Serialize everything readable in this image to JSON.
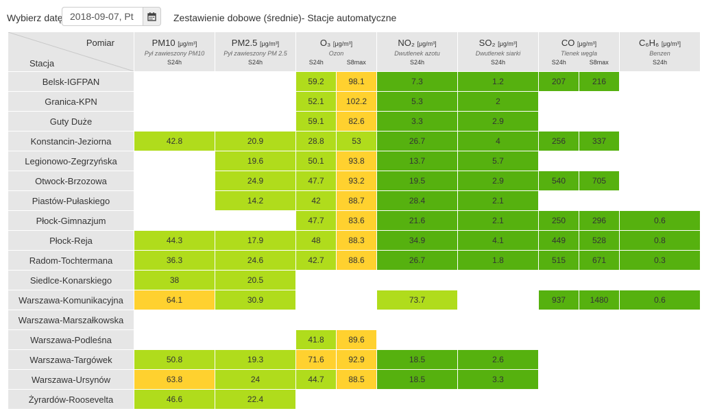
{
  "toolbar": {
    "date_label": "Wybierz datę:",
    "date_value": "2018-09-07, Pt",
    "title": "Zestawienie dobowe (średnie)- Stacje automatyczne"
  },
  "header": {
    "pomiar": "Pomiar",
    "stacja": "Stacja",
    "pm10": {
      "name": "PM10",
      "unit": "[μg/m³]",
      "desc": "Pył zawieszony PM10",
      "sub": [
        "S24h"
      ]
    },
    "pm25": {
      "name": "PM2.5",
      "unit": "[μg/m³]",
      "desc": "Pył zawieszony PM 2.5",
      "sub": [
        "S24h"
      ]
    },
    "o3": {
      "name": "O₃",
      "unit": "[μg/m³]",
      "desc": "Ozon",
      "sub": [
        "S24h",
        "S8max"
      ]
    },
    "no2": {
      "name": "NO₂",
      "unit": "[μg/m³]",
      "desc": "Dwutlenek azotu",
      "sub": [
        "S24h"
      ]
    },
    "so2": {
      "name": "SO₂",
      "unit": "[μg/m³]",
      "desc": "Dwutlenek siarki",
      "sub": [
        "S24h"
      ]
    },
    "co": {
      "name": "CO",
      "unit": "[μg/m³]",
      "desc": "Tlenek węgla",
      "sub": [
        "S24h",
        "S8max"
      ]
    },
    "c6h6": {
      "name": "C₆H₆",
      "unit": "[μg/m³]",
      "desc": "Benzen",
      "sub": [
        "S24h"
      ]
    }
  },
  "colors": {
    "y": "#ffd12f",
    "l": "#b0dc1c",
    "g": "#56b10f",
    "e": "#ffffff",
    "header_bg": "#e6e6e6"
  },
  "rows": [
    {
      "station": "Belsk-IGFPAN",
      "cells": [
        [
          "",
          ""
        ],
        [
          "",
          ""
        ],
        [
          "59.2",
          "l"
        ],
        [
          "98.1",
          "y"
        ],
        [
          "7.3",
          "g"
        ],
        [
          "1.2",
          "g"
        ],
        [
          "207",
          "g"
        ],
        [
          "216",
          "g"
        ],
        [
          "",
          ""
        ]
      ]
    },
    {
      "station": "Granica-KPN",
      "cells": [
        [
          "",
          ""
        ],
        [
          "",
          ""
        ],
        [
          "52.1",
          "l"
        ],
        [
          "102.2",
          "y"
        ],
        [
          "5.3",
          "g"
        ],
        [
          "2",
          "g"
        ],
        [
          "",
          ""
        ],
        [
          "",
          ""
        ],
        [
          "",
          ""
        ]
      ]
    },
    {
      "station": "Guty Duże",
      "cells": [
        [
          "",
          ""
        ],
        [
          "",
          ""
        ],
        [
          "59.1",
          "l"
        ],
        [
          "82.6",
          "y"
        ],
        [
          "3.3",
          "g"
        ],
        [
          "2.9",
          "g"
        ],
        [
          "",
          ""
        ],
        [
          "",
          ""
        ],
        [
          "",
          ""
        ]
      ]
    },
    {
      "station": "Konstancin-Jeziorna",
      "cells": [
        [
          "42.8",
          "l"
        ],
        [
          "20.9",
          "l"
        ],
        [
          "28.8",
          "l"
        ],
        [
          "53",
          "l"
        ],
        [
          "26.7",
          "g"
        ],
        [
          "4",
          "g"
        ],
        [
          "256",
          "g"
        ],
        [
          "337",
          "g"
        ],
        [
          "",
          ""
        ]
      ]
    },
    {
      "station": "Legionowo-Zegrzyńska",
      "cells": [
        [
          "",
          ""
        ],
        [
          "19.6",
          "l"
        ],
        [
          "50.1",
          "l"
        ],
        [
          "93.8",
          "y"
        ],
        [
          "13.7",
          "g"
        ],
        [
          "5.7",
          "g"
        ],
        [
          "",
          ""
        ],
        [
          "",
          ""
        ],
        [
          "",
          ""
        ]
      ]
    },
    {
      "station": "Otwock-Brzozowa",
      "cells": [
        [
          "",
          ""
        ],
        [
          "24.9",
          "l"
        ],
        [
          "47.7",
          "l"
        ],
        [
          "93.2",
          "y"
        ],
        [
          "19.5",
          "g"
        ],
        [
          "2.9",
          "g"
        ],
        [
          "540",
          "g"
        ],
        [
          "705",
          "g"
        ],
        [
          "",
          ""
        ]
      ]
    },
    {
      "station": "Piastów-Pułaskiego",
      "cells": [
        [
          "",
          ""
        ],
        [
          "14.2",
          "l"
        ],
        [
          "42",
          "l"
        ],
        [
          "88.7",
          "y"
        ],
        [
          "28.4",
          "g"
        ],
        [
          "2.1",
          "g"
        ],
        [
          "",
          ""
        ],
        [
          "",
          ""
        ],
        [
          "",
          ""
        ]
      ]
    },
    {
      "station": "Płock-Gimnazjum",
      "cells": [
        [
          "",
          ""
        ],
        [
          "",
          ""
        ],
        [
          "47.7",
          "l"
        ],
        [
          "83.6",
          "y"
        ],
        [
          "21.6",
          "g"
        ],
        [
          "2.1",
          "g"
        ],
        [
          "250",
          "g"
        ],
        [
          "296",
          "g"
        ],
        [
          "0.6",
          "g"
        ]
      ]
    },
    {
      "station": "Płock-Reja",
      "cells": [
        [
          "44.3",
          "l"
        ],
        [
          "17.9",
          "l"
        ],
        [
          "48",
          "l"
        ],
        [
          "88.3",
          "y"
        ],
        [
          "34.9",
          "g"
        ],
        [
          "4.1",
          "g"
        ],
        [
          "449",
          "g"
        ],
        [
          "528",
          "g"
        ],
        [
          "0.8",
          "g"
        ]
      ]
    },
    {
      "station": "Radom-Tochtermana",
      "cells": [
        [
          "36.3",
          "l"
        ],
        [
          "24.6",
          "l"
        ],
        [
          "42.7",
          "l"
        ],
        [
          "88.6",
          "y"
        ],
        [
          "26.7",
          "g"
        ],
        [
          "1.8",
          "g"
        ],
        [
          "515",
          "g"
        ],
        [
          "671",
          "g"
        ],
        [
          "0.3",
          "g"
        ]
      ]
    },
    {
      "station": "Siedlce-Konarskiego",
      "cells": [
        [
          "38",
          "l"
        ],
        [
          "20.5",
          "l"
        ],
        [
          "",
          ""
        ],
        [
          "",
          ""
        ],
        [
          "",
          ""
        ],
        [
          "",
          ""
        ],
        [
          "",
          ""
        ],
        [
          "",
          ""
        ],
        [
          "",
          ""
        ]
      ]
    },
    {
      "station": "Warszawa-Komunikacyjna",
      "cells": [
        [
          "64.1",
          "y"
        ],
        [
          "30.9",
          "l"
        ],
        [
          "",
          ""
        ],
        [
          "",
          ""
        ],
        [
          "73.7",
          "l"
        ],
        [
          "",
          ""
        ],
        [
          "937",
          "g"
        ],
        [
          "1480",
          "g"
        ],
        [
          "0.6",
          "g"
        ]
      ]
    },
    {
      "station": "Warszawa-Marszałkowska",
      "cells": [
        [
          "",
          ""
        ],
        [
          "",
          ""
        ],
        [
          "",
          ""
        ],
        [
          "",
          ""
        ],
        [
          "",
          ""
        ],
        [
          "",
          ""
        ],
        [
          "",
          ""
        ],
        [
          "",
          ""
        ],
        [
          "",
          ""
        ]
      ]
    },
    {
      "station": "Warszawa-Podleśna",
      "cells": [
        [
          "",
          ""
        ],
        [
          "",
          ""
        ],
        [
          "41.8",
          "l"
        ],
        [
          "89.6",
          "y"
        ],
        [
          "",
          ""
        ],
        [
          "",
          ""
        ],
        [
          "",
          ""
        ],
        [
          "",
          ""
        ],
        [
          "",
          ""
        ]
      ]
    },
    {
      "station": "Warszawa-Targówek",
      "cells": [
        [
          "50.8",
          "l"
        ],
        [
          "19.3",
          "l"
        ],
        [
          "71.6",
          "y"
        ],
        [
          "92.9",
          "y"
        ],
        [
          "18.5",
          "g"
        ],
        [
          "2.6",
          "g"
        ],
        [
          "",
          ""
        ],
        [
          "",
          ""
        ],
        [
          "",
          ""
        ]
      ]
    },
    {
      "station": "Warszawa-Ursynów",
      "cells": [
        [
          "63.8",
          "y"
        ],
        [
          "24",
          "l"
        ],
        [
          "44.7",
          "l"
        ],
        [
          "88.5",
          "y"
        ],
        [
          "18.5",
          "g"
        ],
        [
          "3.3",
          "g"
        ],
        [
          "",
          ""
        ],
        [
          "",
          ""
        ],
        [
          "",
          ""
        ]
      ]
    },
    {
      "station": "Żyrardów-Roosevelta",
      "cells": [
        [
          "46.6",
          "l"
        ],
        [
          "22.4",
          "l"
        ],
        [
          "",
          ""
        ],
        [
          "",
          ""
        ],
        [
          "",
          ""
        ],
        [
          "",
          ""
        ],
        [
          "",
          ""
        ],
        [
          "",
          ""
        ],
        [
          "",
          ""
        ]
      ]
    }
  ]
}
